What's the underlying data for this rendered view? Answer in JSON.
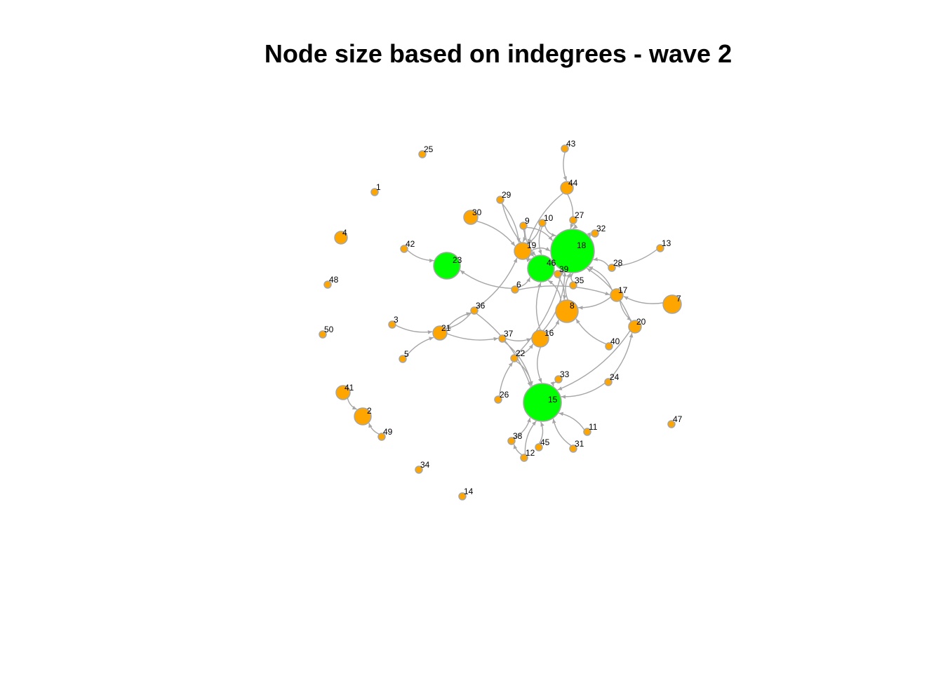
{
  "title": "Node size based on indegrees - wave 2",
  "colors": {
    "default_node": "#FFA500",
    "highlight_node": "#00FF00",
    "node_border": "#A6A6A6",
    "edge": "#A6A6A6"
  },
  "nodes": [
    {
      "id": "1",
      "highlight": false
    },
    {
      "id": "2",
      "highlight": false
    },
    {
      "id": "3",
      "highlight": false
    },
    {
      "id": "4",
      "highlight": false
    },
    {
      "id": "5",
      "highlight": false
    },
    {
      "id": "6",
      "highlight": false
    },
    {
      "id": "7",
      "highlight": false
    },
    {
      "id": "8",
      "highlight": false
    },
    {
      "id": "9",
      "highlight": false
    },
    {
      "id": "10",
      "highlight": false
    },
    {
      "id": "11",
      "highlight": false
    },
    {
      "id": "12",
      "highlight": false
    },
    {
      "id": "13",
      "highlight": false
    },
    {
      "id": "14",
      "highlight": false
    },
    {
      "id": "15",
      "highlight": true
    },
    {
      "id": "16",
      "highlight": false
    },
    {
      "id": "17",
      "highlight": false
    },
    {
      "id": "18",
      "highlight": true
    },
    {
      "id": "19",
      "highlight": false
    },
    {
      "id": "20",
      "highlight": false
    },
    {
      "id": "21",
      "highlight": false
    },
    {
      "id": "22",
      "highlight": false
    },
    {
      "id": "23",
      "highlight": true
    },
    {
      "id": "24",
      "highlight": false
    },
    {
      "id": "25",
      "highlight": false
    },
    {
      "id": "26",
      "highlight": false
    },
    {
      "id": "27",
      "highlight": false
    },
    {
      "id": "28",
      "highlight": false
    },
    {
      "id": "29",
      "highlight": false
    },
    {
      "id": "30",
      "highlight": false
    },
    {
      "id": "31",
      "highlight": false
    },
    {
      "id": "32",
      "highlight": false
    },
    {
      "id": "33",
      "highlight": false
    },
    {
      "id": "34",
      "highlight": false
    },
    {
      "id": "35",
      "highlight": false
    },
    {
      "id": "36",
      "highlight": false
    },
    {
      "id": "37",
      "highlight": false
    },
    {
      "id": "38",
      "highlight": false
    },
    {
      "id": "39",
      "highlight": false
    },
    {
      "id": "40",
      "highlight": false
    },
    {
      "id": "41",
      "highlight": false
    },
    {
      "id": "42",
      "highlight": false
    },
    {
      "id": "43",
      "highlight": false
    },
    {
      "id": "44",
      "highlight": false
    },
    {
      "id": "45",
      "highlight": false
    },
    {
      "id": "46",
      "highlight": true
    },
    {
      "id": "47",
      "highlight": false
    },
    {
      "id": "48",
      "highlight": false
    },
    {
      "id": "49",
      "highlight": false
    },
    {
      "id": "50",
      "highlight": false
    }
  ],
  "edges": [
    [
      "43",
      "44"
    ],
    [
      "44",
      "18"
    ],
    [
      "44",
      "19"
    ],
    [
      "29",
      "19"
    ],
    [
      "29",
      "46"
    ],
    [
      "9",
      "19"
    ],
    [
      "9",
      "46"
    ],
    [
      "10",
      "19"
    ],
    [
      "10",
      "18"
    ],
    [
      "27",
      "18"
    ],
    [
      "32",
      "18"
    ],
    [
      "30",
      "19"
    ],
    [
      "19",
      "46"
    ],
    [
      "19",
      "18"
    ],
    [
      "42",
      "23"
    ],
    [
      "6",
      "23"
    ],
    [
      "6",
      "46"
    ],
    [
      "6",
      "17"
    ],
    [
      "39",
      "18"
    ],
    [
      "35",
      "18"
    ],
    [
      "28",
      "18"
    ],
    [
      "13",
      "28"
    ],
    [
      "17",
      "18"
    ],
    [
      "17",
      "8"
    ],
    [
      "17",
      "20"
    ],
    [
      "7",
      "17"
    ],
    [
      "20",
      "18"
    ],
    [
      "20",
      "15"
    ],
    [
      "24",
      "20"
    ],
    [
      "8",
      "18"
    ],
    [
      "8",
      "46"
    ],
    [
      "40",
      "8"
    ],
    [
      "16",
      "8"
    ],
    [
      "16",
      "46"
    ],
    [
      "16",
      "15"
    ],
    [
      "36",
      "21"
    ],
    [
      "36",
      "19"
    ],
    [
      "36",
      "15"
    ],
    [
      "3",
      "21"
    ],
    [
      "5",
      "21"
    ],
    [
      "21",
      "37"
    ],
    [
      "21",
      "36"
    ],
    [
      "37",
      "16"
    ],
    [
      "37",
      "15"
    ],
    [
      "22",
      "16"
    ],
    [
      "22",
      "15"
    ],
    [
      "22",
      "18"
    ],
    [
      "26",
      "22"
    ],
    [
      "33",
      "15"
    ],
    [
      "24",
      "15"
    ],
    [
      "11",
      "15"
    ],
    [
      "31",
      "15"
    ],
    [
      "45",
      "15"
    ],
    [
      "12",
      "15"
    ],
    [
      "38",
      "15"
    ],
    [
      "12",
      "38"
    ],
    [
      "41",
      "2"
    ],
    [
      "49",
      "2"
    ],
    [
      "16",
      "18"
    ],
    [
      "39",
      "8"
    ],
    [
      "10",
      "46"
    ],
    [
      "9",
      "18"
    ]
  ]
}
